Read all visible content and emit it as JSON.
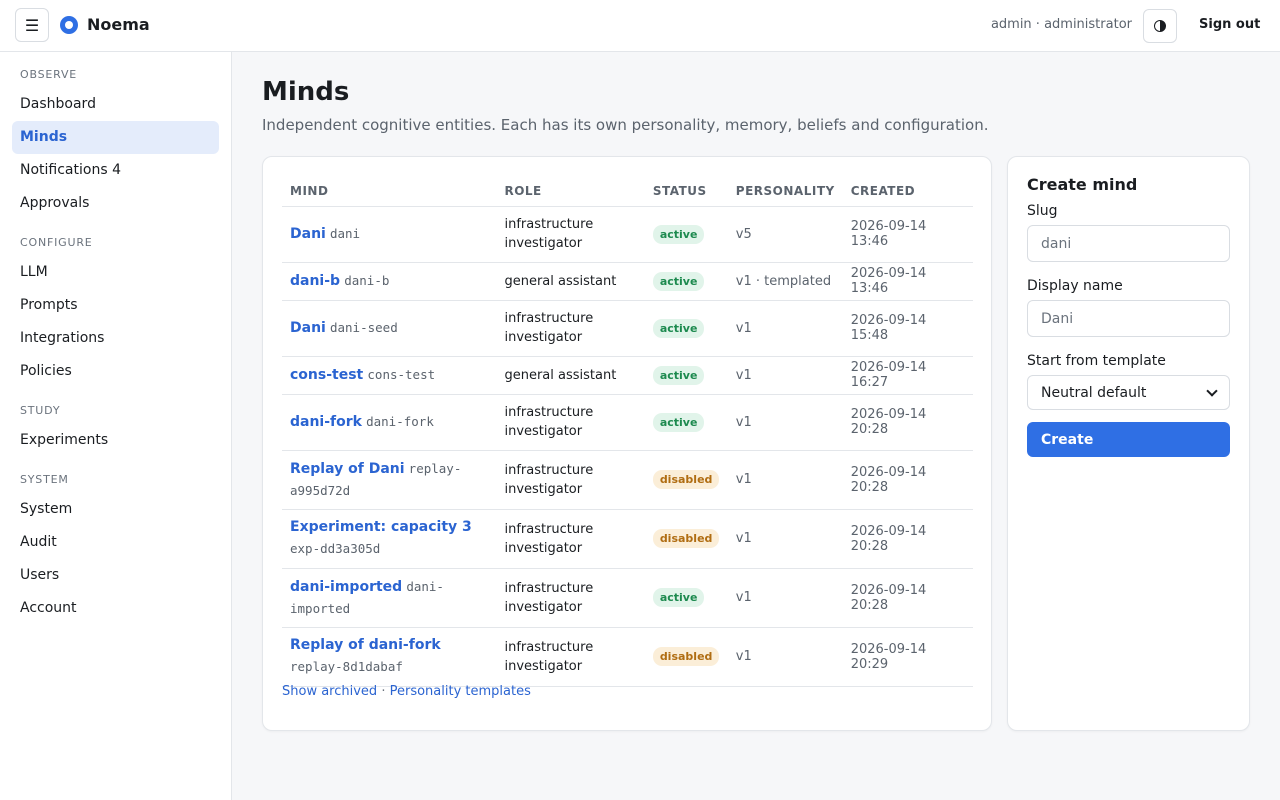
{
  "app": {
    "name": "Noema",
    "user": "admin · administrator",
    "sign_out": "Sign out",
    "menu_glyph": "☰"
  },
  "sidebar": {
    "groups": [
      {
        "heading": "OBSERVE",
        "items": [
          {
            "label": "Dashboard",
            "active": false
          },
          {
            "label": "Minds",
            "active": true
          },
          {
            "label": "Notifications 4",
            "active": false
          },
          {
            "label": "Approvals",
            "active": false
          }
        ]
      },
      {
        "heading": "CONFIGURE",
        "items": [
          {
            "label": "LLM",
            "active": false
          },
          {
            "label": "Prompts",
            "active": false
          },
          {
            "label": "Integrations",
            "active": false
          },
          {
            "label": "Policies",
            "active": false
          }
        ]
      },
      {
        "heading": "STUDY",
        "items": [
          {
            "label": "Experiments",
            "active": false
          }
        ]
      },
      {
        "heading": "SYSTEM",
        "items": [
          {
            "label": "System",
            "active": false
          },
          {
            "label": "Audit",
            "active": false
          },
          {
            "label": "Users",
            "active": false
          },
          {
            "label": "Account",
            "active": false
          }
        ]
      }
    ]
  },
  "page": {
    "title": "Minds",
    "subtitle": "Independent cognitive entities. Each has its own personality, memory, beliefs and configuration."
  },
  "table": {
    "columns": [
      "MIND",
      "ROLE",
      "STATUS",
      "PERSONALITY",
      "CREATED"
    ],
    "rows": [
      {
        "name": "Dani",
        "slug": "dani",
        "role": "infrastructure investigator",
        "status": "active",
        "personality": "v5",
        "created": "2026-09-14 13:46"
      },
      {
        "name": "dani-b",
        "slug": "dani-b",
        "role": "general assistant",
        "status": "active",
        "personality": "v1 · templated",
        "created": "2026-09-14 13:46"
      },
      {
        "name": "Dani",
        "slug": "dani-seed",
        "role": "infrastructure investigator",
        "status": "active",
        "personality": "v1",
        "created": "2026-09-14 15:48"
      },
      {
        "name": "cons-test",
        "slug": "cons-test",
        "role": "general assistant",
        "status": "active",
        "personality": "v1",
        "created": "2026-09-14 16:27"
      },
      {
        "name": "dani-fork",
        "slug": "dani-fork",
        "role": "infrastructure investigator",
        "status": "active",
        "personality": "v1",
        "created": "2026-09-14 20:28"
      },
      {
        "name": "Replay of Dani",
        "slug": "replay-a995d72d",
        "role": "infrastructure investigator",
        "status": "disabled",
        "personality": "v1",
        "created": "2026-09-14 20:28"
      },
      {
        "name": "Experiment: capacity 3",
        "slug": "exp-dd3a305d",
        "role": "infrastructure investigator",
        "status": "disabled",
        "personality": "v1",
        "created": "2026-09-14 20:28"
      },
      {
        "name": "dani-imported",
        "slug": "dani-imported",
        "role": "infrastructure investigator",
        "status": "active",
        "personality": "v1",
        "created": "2026-09-14 20:28"
      },
      {
        "name": "Replay of dani-fork",
        "slug": "replay-8d1dabaf",
        "role": "infrastructure investigator",
        "status": "disabled",
        "personality": "v1",
        "created": "2026-09-14 20:29"
      }
    ],
    "footer": {
      "show_archived": "Show archived",
      "separator": "·",
      "templates": "Personality templates"
    }
  },
  "create": {
    "title": "Create mind",
    "slug_label": "Slug",
    "slug_placeholder": "dani",
    "display_label": "Display name",
    "display_placeholder": "Dani",
    "template_label": "Start from template",
    "template_value": "Neutral default",
    "button": "Create"
  }
}
